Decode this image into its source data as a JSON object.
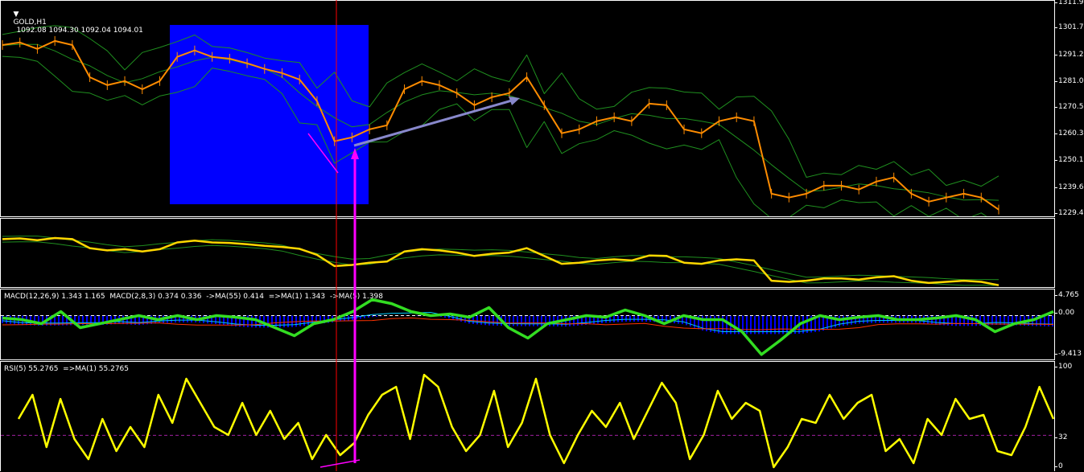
{
  "header": {
    "symbol_label": "GOLD,H1",
    "ohlc": "1092.08 1094.30 1092.04 1094.01",
    "menu_icon": "triangle-down-icon"
  },
  "macd_label": "MACD(12,26,9) 1.343 1.165  MACD(2,8,3) 0.374 0.336  ->MA(55) 0.414  =>MA(1) 1.343  ->MA(5) 1.398",
  "rsi_label": "RSI(5) 55.2765  =>MA(1) 55.2765",
  "colors": {
    "background": "#000000",
    "price": "#ff8c00",
    "bands": "#1f8f1f",
    "overlay": "#ffd700",
    "macd_signal": "#33dd22",
    "histogram": "#0000ff",
    "rsi": "#ffff00",
    "highlight_box": "#0000ff",
    "vline": "#ff0000",
    "arrow": "#ff00ff",
    "trend_arrow": "#8888cc"
  },
  "chart_data": [
    {
      "type": "line",
      "title": "GOLD,H1",
      "ylim": [
        1228.5,
        1312.3
      ],
      "y_ticks": [
        "1311.9",
        "1301.7",
        "1291.2",
        "1281.0",
        "1270.5",
        "1260.3",
        "1250.1",
        "1239.6",
        "1229.4"
      ],
      "series": [
        {
          "values": [
            1295.1,
            1296.1,
            1293.6,
            1296.7,
            1295.1,
            1282.6,
            1279.5,
            1281.1,
            1277.9,
            1281.1,
            1290.5,
            1293.0,
            1290.5,
            1289.8,
            1288.0,
            1285.8,
            1284.2,
            1281.7,
            1273.3,
            1257.7,
            1259.2,
            1262.3,
            1263.9,
            1277.9,
            1281.1,
            1279.5,
            1276.4,
            1271.7,
            1274.8,
            1276.4,
            1282.6,
            1271.7,
            1260.8,
            1262.3,
            1265.5,
            1267.0,
            1265.5,
            1272.3,
            1271.7,
            1262.3,
            1260.8,
            1265.5,
            1267.0,
            1265.5,
            1237.3,
            1235.8,
            1237.3,
            1240.4,
            1240.4,
            1238.9,
            1242.0,
            1243.6,
            1237.3,
            1234.2,
            1235.8,
            1237.3,
            1235.8,
            1231.1
          ]
        }
      ]
    },
    {
      "type": "line",
      "title": "MACD(12,26,9)",
      "ylim": [
        -9.413,
        4.765
      ],
      "y_ticks": [
        "4.765",
        "0.00",
        "-9.413"
      ],
      "series": [
        {
          "values": [
            -0.58,
            -0.97,
            -1.94,
            0.97,
            -2.91,
            -1.94,
            -0.97,
            0,
            -0.97,
            0,
            -0.97,
            0,
            -0.39,
            -0.97,
            -2.91,
            -4.85,
            -1.94,
            -0.97,
            0.97,
            3.88,
            2.91,
            0.97,
            0,
            0.39,
            -0.39,
            1.94,
            -2.91,
            -5.44,
            -1.94,
            -0.97,
            0,
            -0.39,
            1.36,
            0,
            -1.94,
            0,
            -0.97,
            -0.97,
            -3.88,
            -9.4,
            -5.83,
            -1.94,
            0,
            -0.97,
            -0.39,
            0,
            -0.97,
            -0.97,
            -0.58,
            0,
            -0.97,
            -3.88,
            -1.94,
            -0.97,
            0.97
          ]
        }
      ]
    },
    {
      "type": "line",
      "title": "RSI(5)",
      "ylim": [
        0,
        100
      ],
      "y_ticks": [
        "100",
        "32",
        "0"
      ],
      "level": 32,
      "series": [
        {
          "values": [
            48.4,
            72.6,
            20.2,
            68.5,
            28.2,
            8.1,
            48.4,
            16.1,
            40.3,
            20.2,
            72.6,
            44.4,
            88.7,
            64.5,
            40.3,
            32.3,
            64.5,
            32.3,
            56.5,
            28.2,
            44.4,
            8.1,
            32.3,
            12.1,
            24.2,
            52.4,
            72.6,
            80.6,
            28.2,
            92.7,
            80.6,
            40.3,
            16.1,
            32.3,
            76.6,
            20.2,
            44.4,
            88.7,
            32.3,
            4.0,
            32.3,
            56.5,
            40.3,
            64.5,
            28.2,
            56.5,
            84.7,
            64.5,
            8.1,
            32.3,
            76.6,
            48.4,
            64.5,
            56.5,
            0,
            20.2,
            48.4,
            44.4,
            72.6,
            48.4,
            64.5,
            72.6,
            16.1,
            28.2,
            4.0,
            48.4,
            32.3,
            68.5,
            48.4,
            52.4,
            16.1,
            12.1,
            40.3,
            80.6,
            48.4
          ]
        }
      ]
    }
  ]
}
